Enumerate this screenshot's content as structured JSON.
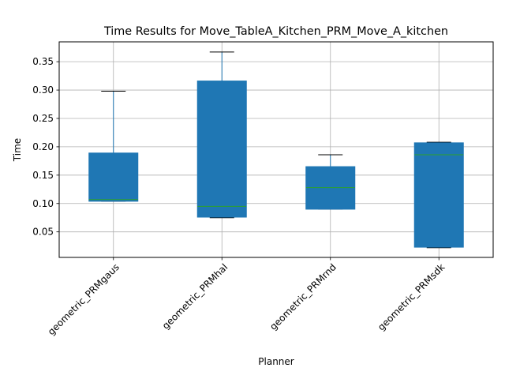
{
  "chart_data": {
    "type": "box",
    "title": "Time Results for Move_TableA_Kitchen_PRM_Move_A_kitchen",
    "xlabel": "Planner",
    "ylabel": "Time",
    "ylim": [
      0.005,
      0.385
    ],
    "yticks": [
      "0.05",
      "0.10",
      "0.15",
      "0.20",
      "0.25",
      "0.30",
      "0.35"
    ],
    "grid": true,
    "colors": {
      "box": "#1f77b4",
      "median": "#2ca02c",
      "whisker": "#1f77b4",
      "cap": "#000000",
      "grid": "#b0b0b0"
    },
    "categories": [
      "geometric_PRMgaus",
      "geometric_PRMhal",
      "geometric_PRMrnd",
      "geometric_PRMsdk"
    ],
    "boxes": [
      {
        "whislo": 0.104,
        "q1": 0.104,
        "med": 0.107,
        "q3": 0.189,
        "whishi": 0.298
      },
      {
        "whislo": 0.075,
        "q1": 0.076,
        "med": 0.095,
        "q3": 0.316,
        "whishi": 0.367
      },
      {
        "whislo": 0.09,
        "q1": 0.09,
        "med": 0.128,
        "q3": 0.165,
        "whishi": 0.186
      },
      {
        "whislo": 0.022,
        "q1": 0.023,
        "med": 0.186,
        "q3": 0.207,
        "whishi": 0.208
      }
    ]
  }
}
